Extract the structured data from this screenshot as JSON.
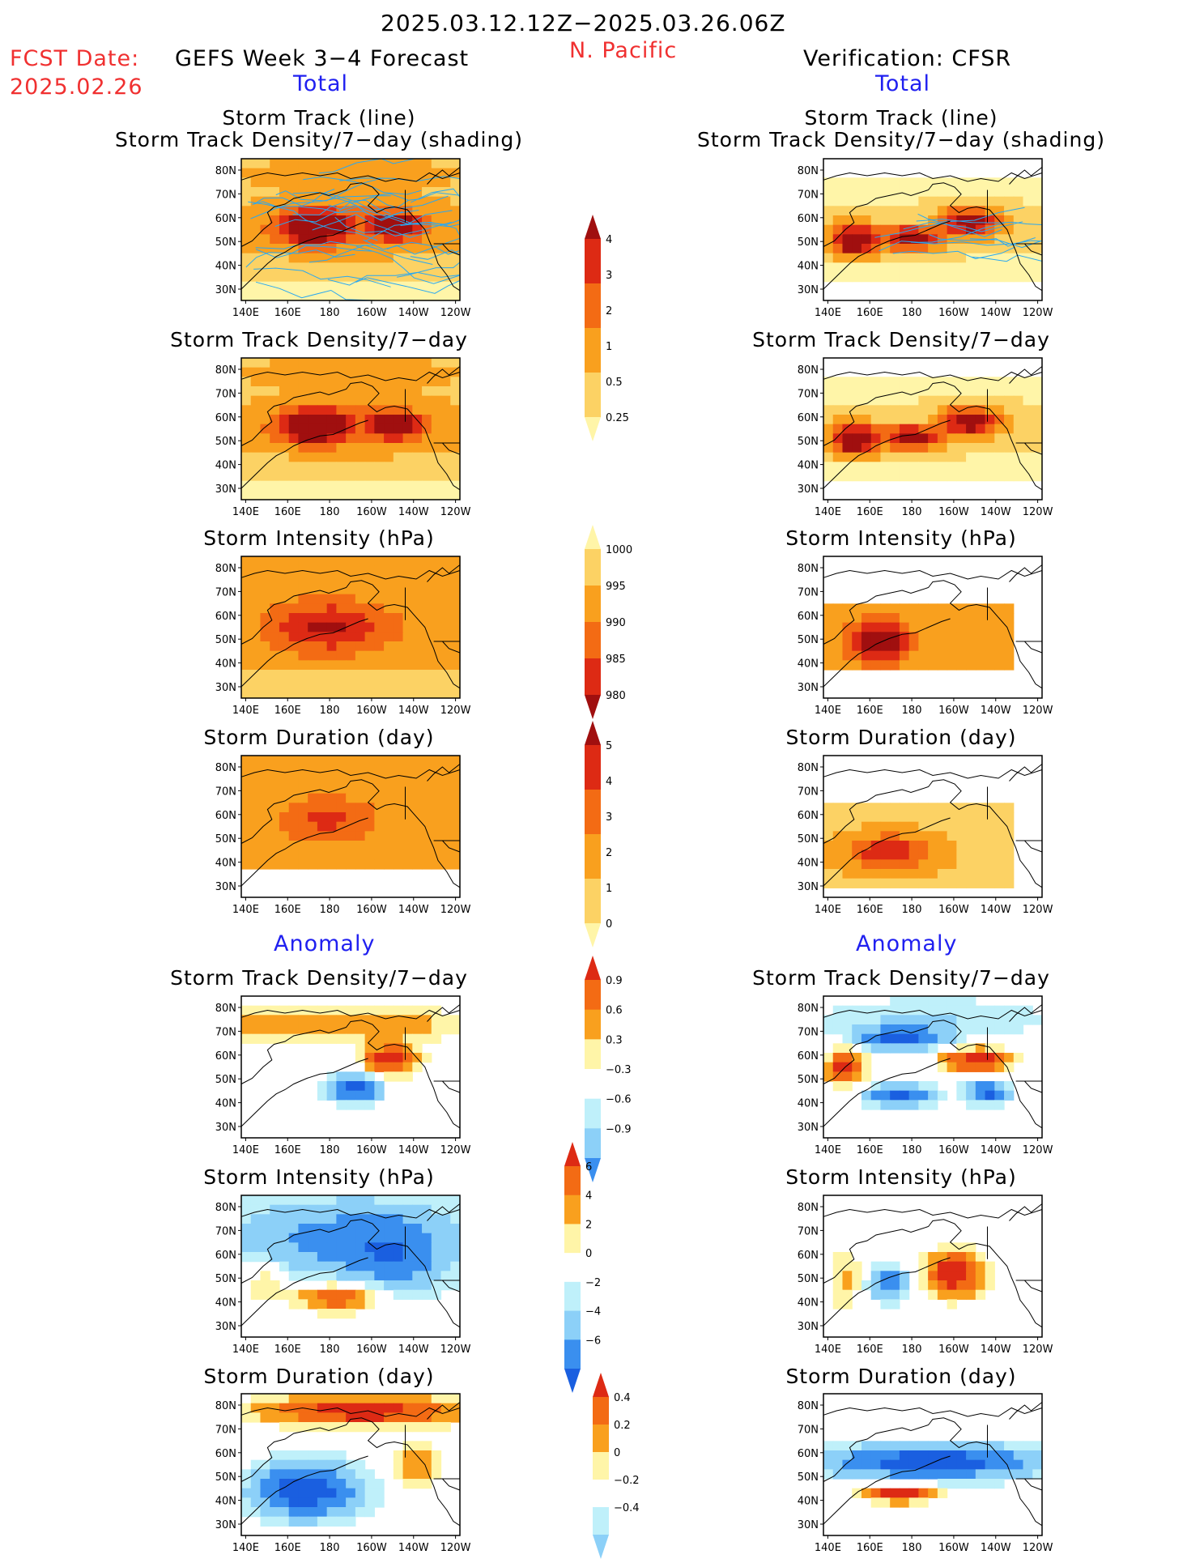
{
  "header": {
    "date_range": "2025.03.12.12Z−2025.03.26.06Z",
    "region": "N. Pacific",
    "fcst_label": "FCST Date:",
    "fcst_date": "2025.02.26",
    "forecast_title": "GEFS Week 3−4 Forecast",
    "verification_title": "Verification: CFSR",
    "total_left": "Total",
    "total_right": "Total",
    "anomaly_left": "Anomaly",
    "anomaly_right": "Anomaly"
  },
  "panel_titles": {
    "track_line": "Storm Track (line)",
    "track_shading": "Storm Track Density/7−day (shading)",
    "density": "Storm Track Density/7−day",
    "intensity": "Storm Intensity (hPa)",
    "duration": "Storm Duration (day)"
  },
  "axes": {
    "lon_labels": [
      "140E",
      "160E",
      "180",
      "160W",
      "140W",
      "120W"
    ],
    "lat_labels": [
      "80N",
      "70N",
      "60N",
      "50N",
      "40N",
      "30N"
    ]
  },
  "colorbars": {
    "density_total": [
      "4",
      "3",
      "2",
      "1",
      "0.5",
      "0.25"
    ],
    "intensity_total": [
      "1000",
      "995",
      "990",
      "985",
      "980"
    ],
    "duration_total": [
      "5",
      "4",
      "3",
      "2",
      "1",
      "0"
    ],
    "density_anom": [
      "0.9",
      "0.6",
      "0.3",
      "−0.3",
      "−0.6",
      "−0.9"
    ],
    "intensity_anom": [
      "6",
      "4",
      "2",
      "0",
      "−2",
      "−4",
      "−6"
    ],
    "duration_anom": [
      "0.4",
      "0.2",
      "0",
      "−0.2",
      "−0.4"
    ]
  },
  "colors": {
    "warm": [
      "#fff5a8",
      "#fcd264",
      "#f9a01e",
      "#f36b14",
      "#dd2a14",
      "#a00f0f"
    ],
    "cool": [
      "#bff0fa",
      "#8cd0f8",
      "#3a8fef",
      "#1a5fe0"
    ],
    "track_line": "#2aa8f0"
  }
}
